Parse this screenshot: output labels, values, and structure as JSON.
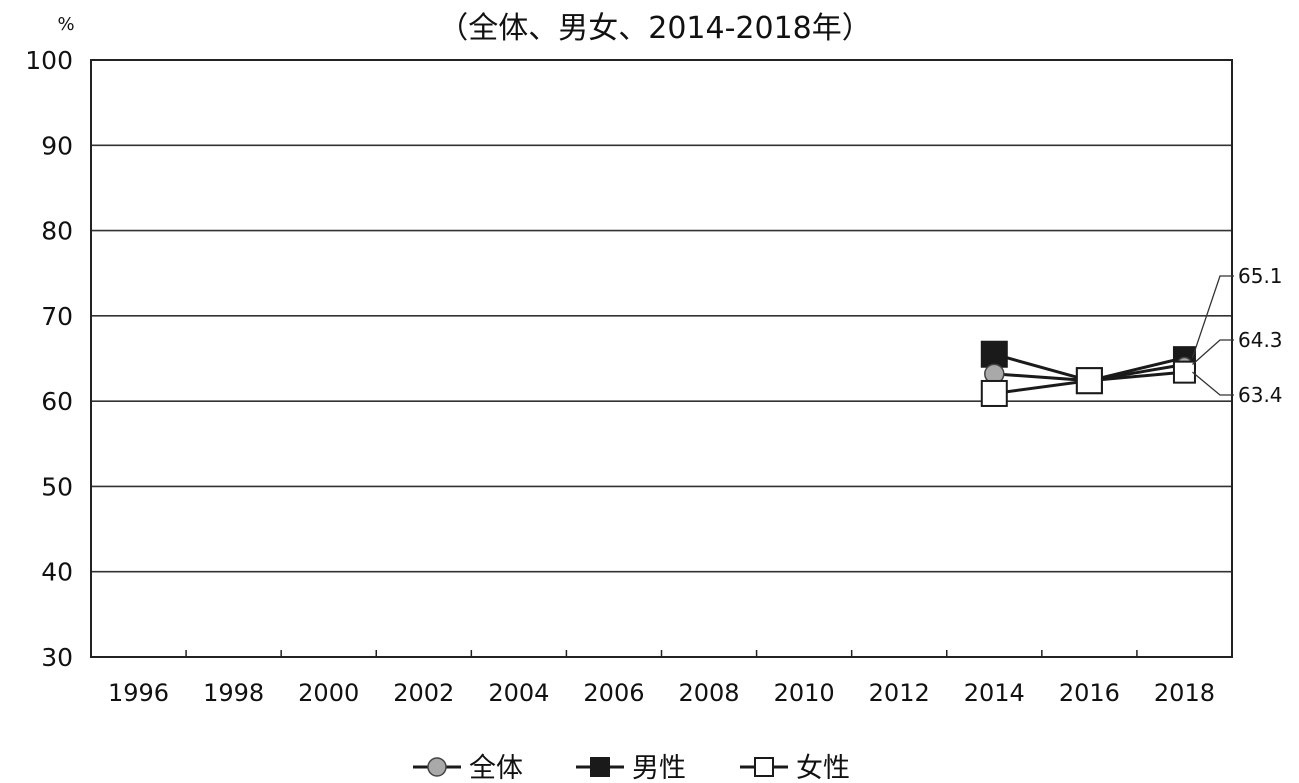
{
  "chart_data": {
    "type": "line",
    "title": "（全体、男女、2014-2018年）",
    "ylabel": "%",
    "xlabel": "",
    "ylim": [
      30,
      100
    ],
    "yticks": [
      100,
      90,
      80,
      70,
      60,
      50,
      40,
      30
    ],
    "categories": [
      "1996",
      "1998",
      "2000",
      "2002",
      "2004",
      "2006",
      "2008",
      "2010",
      "2012",
      "2014",
      "2016",
      "2018"
    ],
    "grid": true,
    "legend_position": "bottom",
    "series": [
      {
        "name": "全体",
        "marker": "circle",
        "fill": "#a9a9a9",
        "values": [
          null,
          null,
          null,
          null,
          null,
          null,
          null,
          null,
          null,
          63.2,
          62.4,
          64.3
        ]
      },
      {
        "name": "男性",
        "marker": "square",
        "fill": "#1a1a1a",
        "values": [
          null,
          null,
          null,
          null,
          null,
          null,
          null,
          null,
          null,
          65.5,
          62.4,
          65.1
        ]
      },
      {
        "name": "女性",
        "marker": "square",
        "fill": "#ffffff",
        "values": [
          null,
          null,
          null,
          null,
          null,
          null,
          null,
          null,
          null,
          60.9,
          62.4,
          63.4
        ]
      }
    ],
    "data_labels": [
      "65.1",
      "64.3",
      "63.4"
    ]
  },
  "colors": {
    "line": "#1a1a1a",
    "grid": "#333333",
    "background": "#ffffff"
  }
}
